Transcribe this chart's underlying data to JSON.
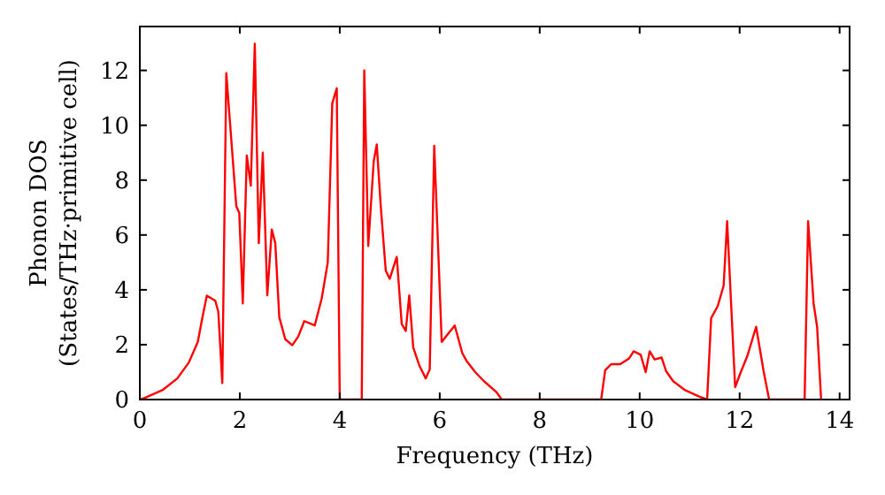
{
  "chart_data": {
    "type": "line",
    "xlabel": "Frequency (THz)",
    "ylabel": "Phonon DOS\n(States/THz·primitive cell)",
    "xlim": [
      0,
      14.2
    ],
    "ylim": [
      0,
      13.6
    ],
    "xticks": [
      0,
      2,
      4,
      6,
      8,
      10,
      12,
      14
    ],
    "yticks": [
      0,
      2,
      4,
      6,
      8,
      10,
      12
    ],
    "grid": false,
    "marker": "none",
    "line_style": "solid",
    "series": [
      {
        "color": "#ff0000",
        "x": [
          0,
          0.1,
          0.45,
          0.75,
          0.98,
          1.16,
          1.25,
          1.34,
          1.51,
          1.57,
          1.65,
          1.73,
          1.93,
          1.99,
          2.06,
          2.14,
          2.22,
          2.3,
          2.38,
          2.46,
          2.55,
          2.64,
          2.71,
          2.79,
          2.91,
          3.05,
          3.17,
          3.29,
          3.5,
          3.64,
          3.76,
          3.85,
          3.94,
          4.0,
          4.44,
          4.49,
          4.57,
          4.68,
          4.74,
          4.82,
          4.92,
          5.0,
          5.14,
          5.24,
          5.32,
          5.39,
          5.47,
          5.59,
          5.72,
          5.8,
          5.89,
          6.04,
          6.3,
          6.45,
          6.54,
          6.71,
          6.89,
          7.13,
          7.24,
          9.23,
          9.31,
          9.43,
          9.61,
          9.79,
          9.88,
          10.02,
          10.12,
          10.2,
          10.3,
          10.44,
          10.53,
          10.67,
          10.91,
          11.2,
          11.35,
          11.43,
          11.56,
          11.68,
          11.75,
          11.91,
          12.03,
          12.15,
          12.33,
          12.48,
          12.59,
          13.3,
          13.37,
          13.48,
          13.55,
          13.63
        ],
        "values": [
          0,
          0.06,
          0.34,
          0.77,
          1.35,
          2.1,
          2.97,
          3.79,
          3.6,
          3.2,
          0.6,
          11.9,
          7.05,
          6.8,
          3.5,
          8.9,
          7.8,
          12.97,
          5.7,
          9.0,
          3.8,
          6.2,
          5.7,
          3.0,
          2.2,
          1.98,
          2.3,
          2.86,
          2.7,
          3.7,
          5.0,
          10.8,
          11.35,
          0,
          0,
          12.0,
          5.6,
          8.7,
          9.3,
          7.05,
          4.7,
          4.4,
          5.2,
          2.75,
          2.5,
          3.8,
          1.9,
          1.25,
          0.77,
          1.1,
          9.25,
          2.1,
          2.7,
          1.7,
          1.4,
          1.0,
          0.66,
          0.28,
          0,
          0,
          1.07,
          1.29,
          1.29,
          1.5,
          1.76,
          1.63,
          1.0,
          1.76,
          1.46,
          1.53,
          1.03,
          0.67,
          0.34,
          0.1,
          0,
          2.97,
          3.4,
          4.15,
          6.5,
          0.45,
          1.03,
          1.57,
          2.65,
          1.03,
          0,
          0,
          6.5,
          3.5,
          2.65,
          0
        ]
      }
    ]
  }
}
